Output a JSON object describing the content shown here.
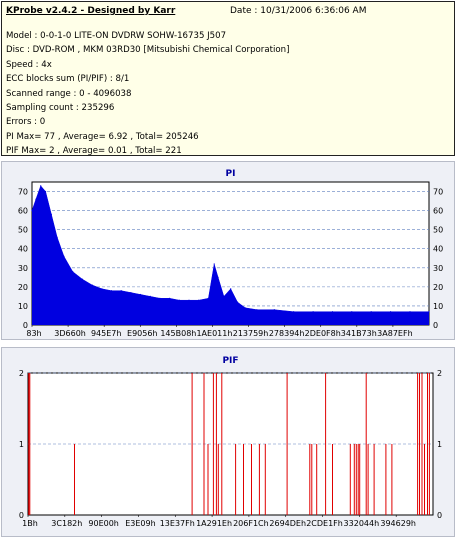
{
  "info": {
    "title": "KProbe v2.4.2 - Designed by Karr",
    "date": "Date : 10/31/2006 6:36:06 AM",
    "lines": [
      "Model : 0-0-1-0 LITE-ON DVDRW SOHW-16735 J507",
      "Disc : DVD-ROM , MKM 03RD30   [Mitsubishi Chemical Corporation]",
      "Speed : 4x",
      "ECC blocks sum (PI/PIF) : 8/1",
      "Scanned range : 0 - 4096038",
      "Sampling count : 235296",
      "Errors : 0",
      "PI Max= 77 , Average= 6.92 , Total= 205246",
      "PIF Max= 2 , Average= 0.01 , Total= 221"
    ]
  },
  "colors": {
    "pi_fill": "#0000e0",
    "pif_line": "#e00000",
    "grid": "#6080c0",
    "panel_bg": "#eef0f6"
  },
  "chart_data": [
    {
      "type": "area",
      "title": "PI",
      "ylim": [
        0,
        75
      ],
      "yticks": [
        0,
        10,
        20,
        30,
        40,
        50,
        60,
        70
      ],
      "xtick_labels": [
        "83h",
        "3D660h",
        "945E7h",
        "E9056h",
        "145B08h",
        "1AE011h",
        "213759h",
        "278394h",
        "2DE0F8h",
        "341B73h",
        "3A87EFh"
      ],
      "x_range": [
        0,
        4096038
      ],
      "series": [
        {
          "points": [
            [
              0,
              60
            ],
            [
              40000,
              66
            ],
            [
              90000,
              73
            ],
            [
              140000,
              70
            ],
            [
              200000,
              58
            ],
            [
              260000,
              46
            ],
            [
              330000,
              36
            ],
            [
              420000,
              28
            ],
            [
              520000,
              24
            ],
            [
              620000,
              21
            ],
            [
              720000,
              19
            ],
            [
              820000,
              18
            ],
            [
              920000,
              18
            ],
            [
              1020000,
              17
            ],
            [
              1120000,
              16
            ],
            [
              1220000,
              15
            ],
            [
              1320000,
              14
            ],
            [
              1420000,
              14
            ],
            [
              1520000,
              13
            ],
            [
              1620000,
              13
            ],
            [
              1720000,
              13
            ],
            [
              1820000,
              14
            ],
            [
              1880000,
              32
            ],
            [
              1920000,
              25
            ],
            [
              1980000,
              15
            ],
            [
              2050000,
              19
            ],
            [
              2120000,
              12
            ],
            [
              2200000,
              9
            ],
            [
              2320000,
              8
            ],
            [
              2500000,
              8
            ],
            [
              2700000,
              7
            ],
            [
              2900000,
              7
            ],
            [
              3100000,
              7
            ],
            [
              3300000,
              7
            ],
            [
              3500000,
              7
            ],
            [
              3700000,
              7
            ],
            [
              3900000,
              7
            ],
            [
              4096038,
              7
            ]
          ]
        }
      ]
    },
    {
      "type": "bar",
      "title": "PIF",
      "ylim": [
        0,
        2
      ],
      "yticks": [
        0,
        1,
        2
      ],
      "xtick_labels": [
        "1Bh",
        "3C182h",
        "90E00h",
        "E3E09h",
        "13E37Fh",
        "1A291Eh",
        "206F1Ch",
        "2694DEh",
        "2CDE1Fh",
        "332044h",
        "394629h"
      ],
      "x_range": [
        0,
        4096038
      ],
      "series": [
        {
          "points": [
            [
              8000,
              2
            ],
            [
              18000,
              2
            ],
            [
              470000,
              1
            ],
            [
              1660000,
              2
            ],
            [
              1780000,
              2
            ],
            [
              1820000,
              1
            ],
            [
              1875000,
              2
            ],
            [
              1905000,
              2
            ],
            [
              1925000,
              1
            ],
            [
              1960000,
              2
            ],
            [
              2100000,
              1
            ],
            [
              2180000,
              1
            ],
            [
              2260000,
              1
            ],
            [
              2340000,
              1
            ],
            [
              2400000,
              1
            ],
            [
              2620000,
              2
            ],
            [
              2850000,
              1
            ],
            [
              2870000,
              1
            ],
            [
              2920000,
              1
            ],
            [
              3010000,
              2
            ],
            [
              3080000,
              1
            ],
            [
              3260000,
              1
            ],
            [
              3300000,
              1
            ],
            [
              3320000,
              1
            ],
            [
              3340000,
              1
            ],
            [
              3355000,
              1
            ],
            [
              3420000,
              2
            ],
            [
              3440000,
              1
            ],
            [
              3500000,
              1
            ],
            [
              3620000,
              1
            ],
            [
              3680000,
              1
            ],
            [
              3940000,
              2
            ],
            [
              3960000,
              2
            ],
            [
              3985000,
              2
            ],
            [
              4010000,
              1
            ],
            [
              4040000,
              2
            ],
            [
              4060000,
              2
            ]
          ]
        }
      ]
    }
  ]
}
